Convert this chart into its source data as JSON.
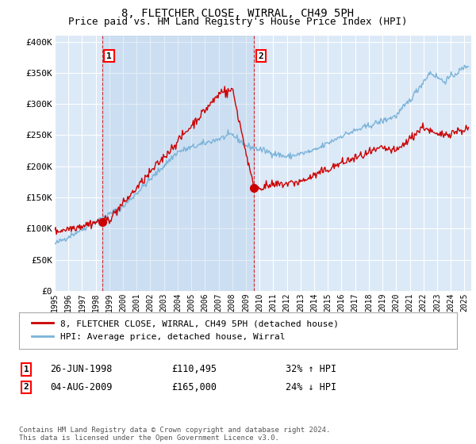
{
  "title": "8, FLETCHER CLOSE, WIRRAL, CH49 5PH",
  "subtitle": "Price paid vs. HM Land Registry's House Price Index (HPI)",
  "title_fontsize": 10,
  "subtitle_fontsize": 9,
  "ylabel_ticks": [
    "£0",
    "£50K",
    "£100K",
    "£150K",
    "£200K",
    "£250K",
    "£300K",
    "£350K",
    "£400K"
  ],
  "ytick_values": [
    0,
    50000,
    100000,
    150000,
    200000,
    250000,
    300000,
    350000,
    400000
  ],
  "ylim": [
    0,
    410000
  ],
  "xlim_start": 1995.0,
  "xlim_end": 2025.5,
  "background_color": "#dce9f7",
  "plot_bg_color": "#dce9f7",
  "shade_color": "#c8dff2",
  "grid_color": "#ffffff",
  "hpi_color": "#7ab3d9",
  "price_color": "#cc0000",
  "sale1_x": 1998.49,
  "sale1_y": 110495,
  "sale1_label": "1",
  "sale1_date": "26-JUN-1998",
  "sale1_price": "£110,495",
  "sale1_hpi": "32% ↑ HPI",
  "sale2_x": 2009.59,
  "sale2_y": 165000,
  "sale2_label": "2",
  "sale2_date": "04-AUG-2009",
  "sale2_price": "£165,000",
  "sale2_hpi": "24% ↓ HPI",
  "legend_label_price": "8, FLETCHER CLOSE, WIRRAL, CH49 5PH (detached house)",
  "legend_label_hpi": "HPI: Average price, detached house, Wirral",
  "footer": "Contains HM Land Registry data © Crown copyright and database right 2024.\nThis data is licensed under the Open Government Licence v3.0.",
  "xticks": [
    1995,
    1996,
    1997,
    1998,
    1999,
    2000,
    2001,
    2002,
    2003,
    2004,
    2005,
    2006,
    2007,
    2008,
    2009,
    2010,
    2011,
    2012,
    2013,
    2014,
    2015,
    2016,
    2017,
    2018,
    2019,
    2020,
    2021,
    2022,
    2023,
    2024,
    2025
  ]
}
